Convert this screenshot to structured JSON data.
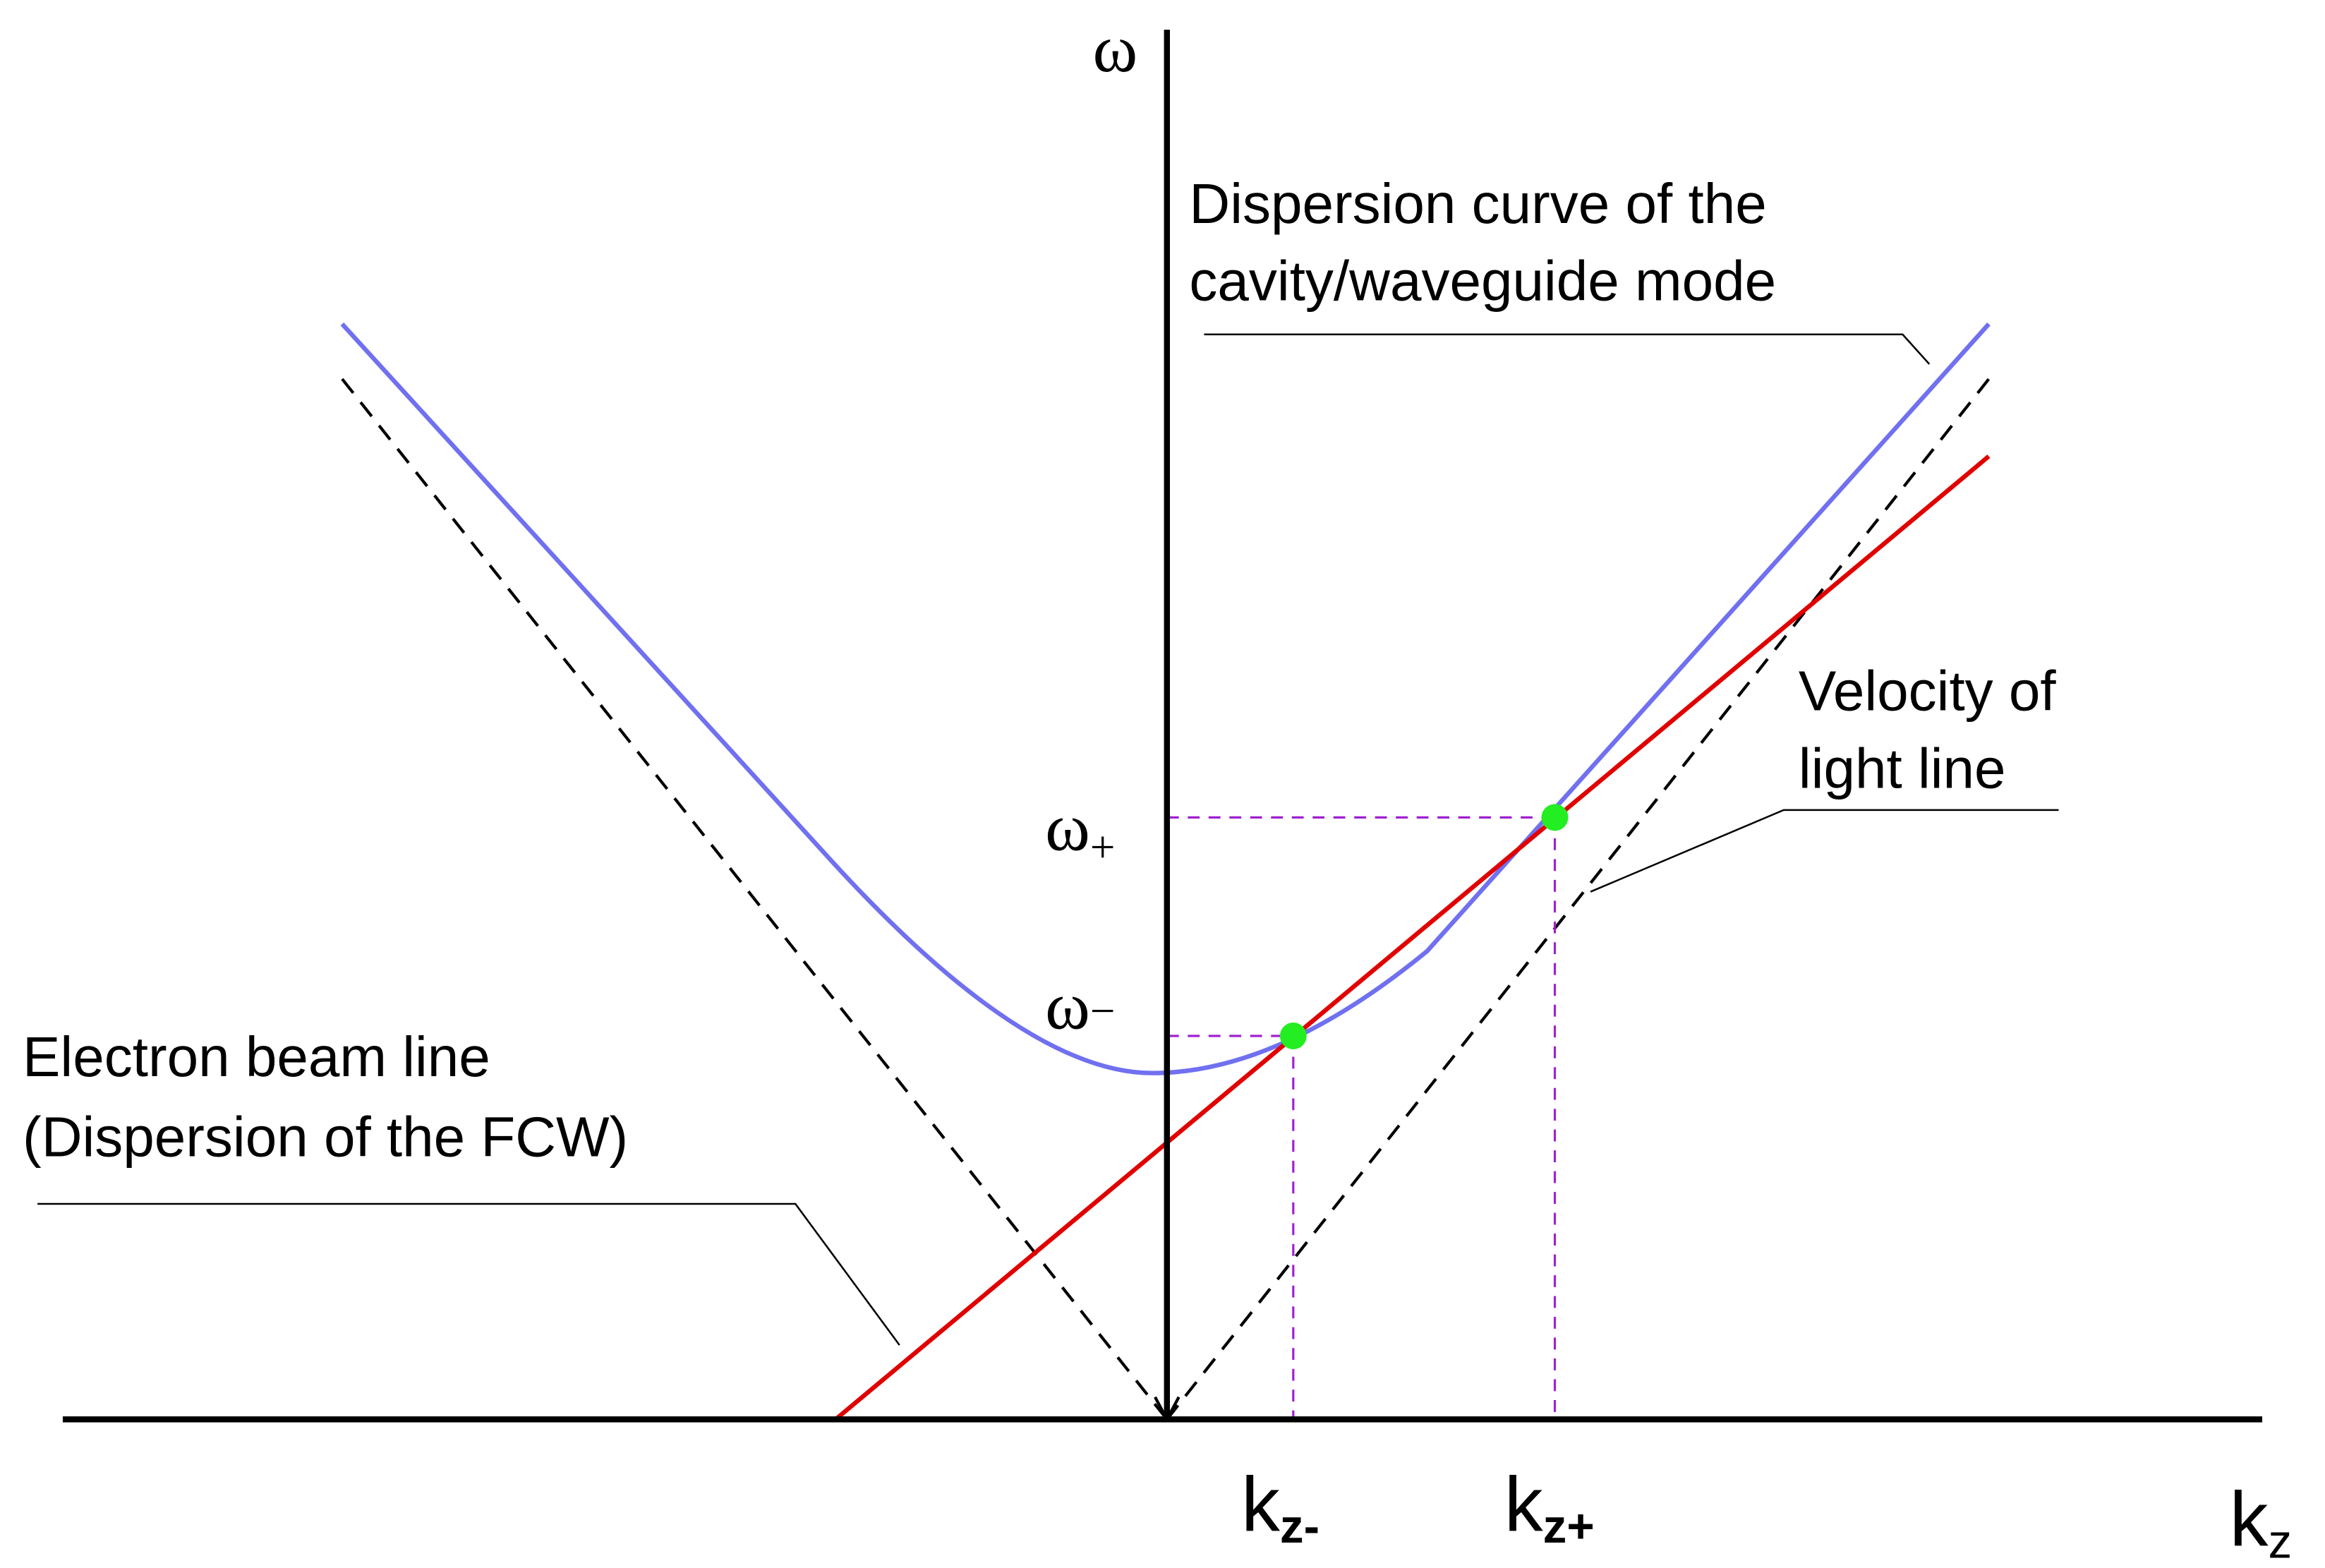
{
  "axes": {
    "y_label": "ω",
    "x_label": {
      "main": "k",
      "sub": "z"
    }
  },
  "marks": {
    "omega_plus": {
      "main": "ω",
      "sub": "+"
    },
    "omega_minus": {
      "main": "ω",
      "sub": "−"
    },
    "k_minus": {
      "main": "k",
      "sub": "z-"
    },
    "k_plus": {
      "main": "k",
      "sub": "z+"
    }
  },
  "annotations": {
    "dispersion_curve": [
      "Dispersion curve of the",
      "cavity/waveguide mode"
    ],
    "light_line": [
      "Velocity of",
      "light line"
    ],
    "beam_line": [
      "Electron beam line",
      "(Dispersion of the FCW)"
    ]
  }
}
